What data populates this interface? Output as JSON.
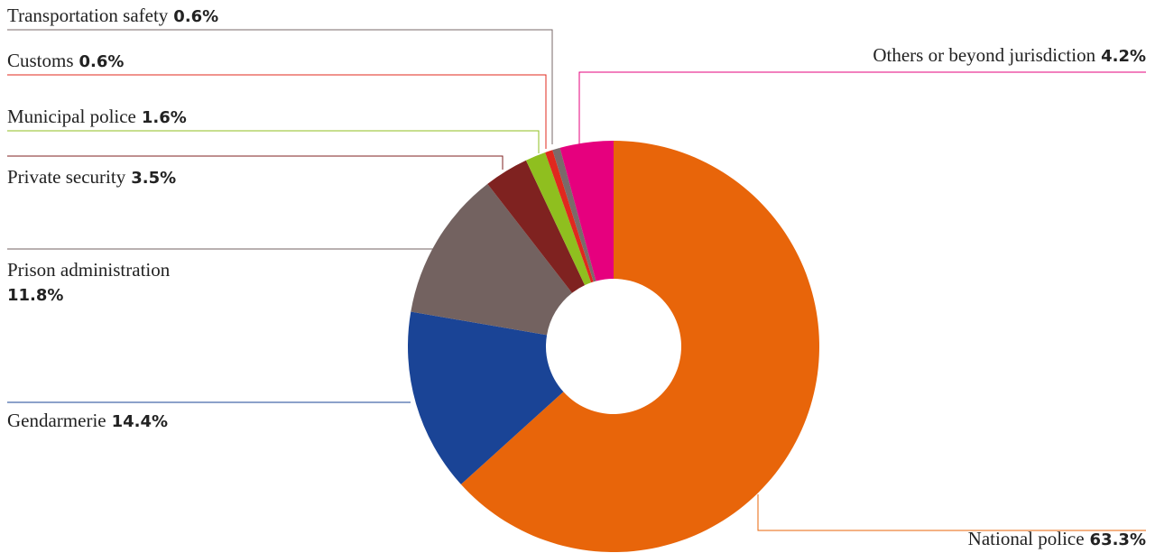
{
  "chart_data": {
    "type": "donut",
    "categories": [
      "National police",
      "Gendarmerie",
      "Prison administration",
      "Private security",
      "Municipal police",
      "Customs",
      "Transportation safety",
      "Others or beyond jurisdiction"
    ],
    "values": [
      63.3,
      14.4,
      11.8,
      3.5,
      1.6,
      0.6,
      0.6,
      4.2
    ],
    "value_labels": [
      "63.3%",
      "14.4%",
      "11.8%",
      "3.5%",
      "1.6%",
      "0.6%",
      "0.6%",
      "4.2%"
    ],
    "colors": [
      "#e8650a",
      "#1a4496",
      "#736260",
      "#7f2220",
      "#8fbf1f",
      "#e0281e",
      "#7a6a6a",
      "#e6007e"
    ]
  }
}
